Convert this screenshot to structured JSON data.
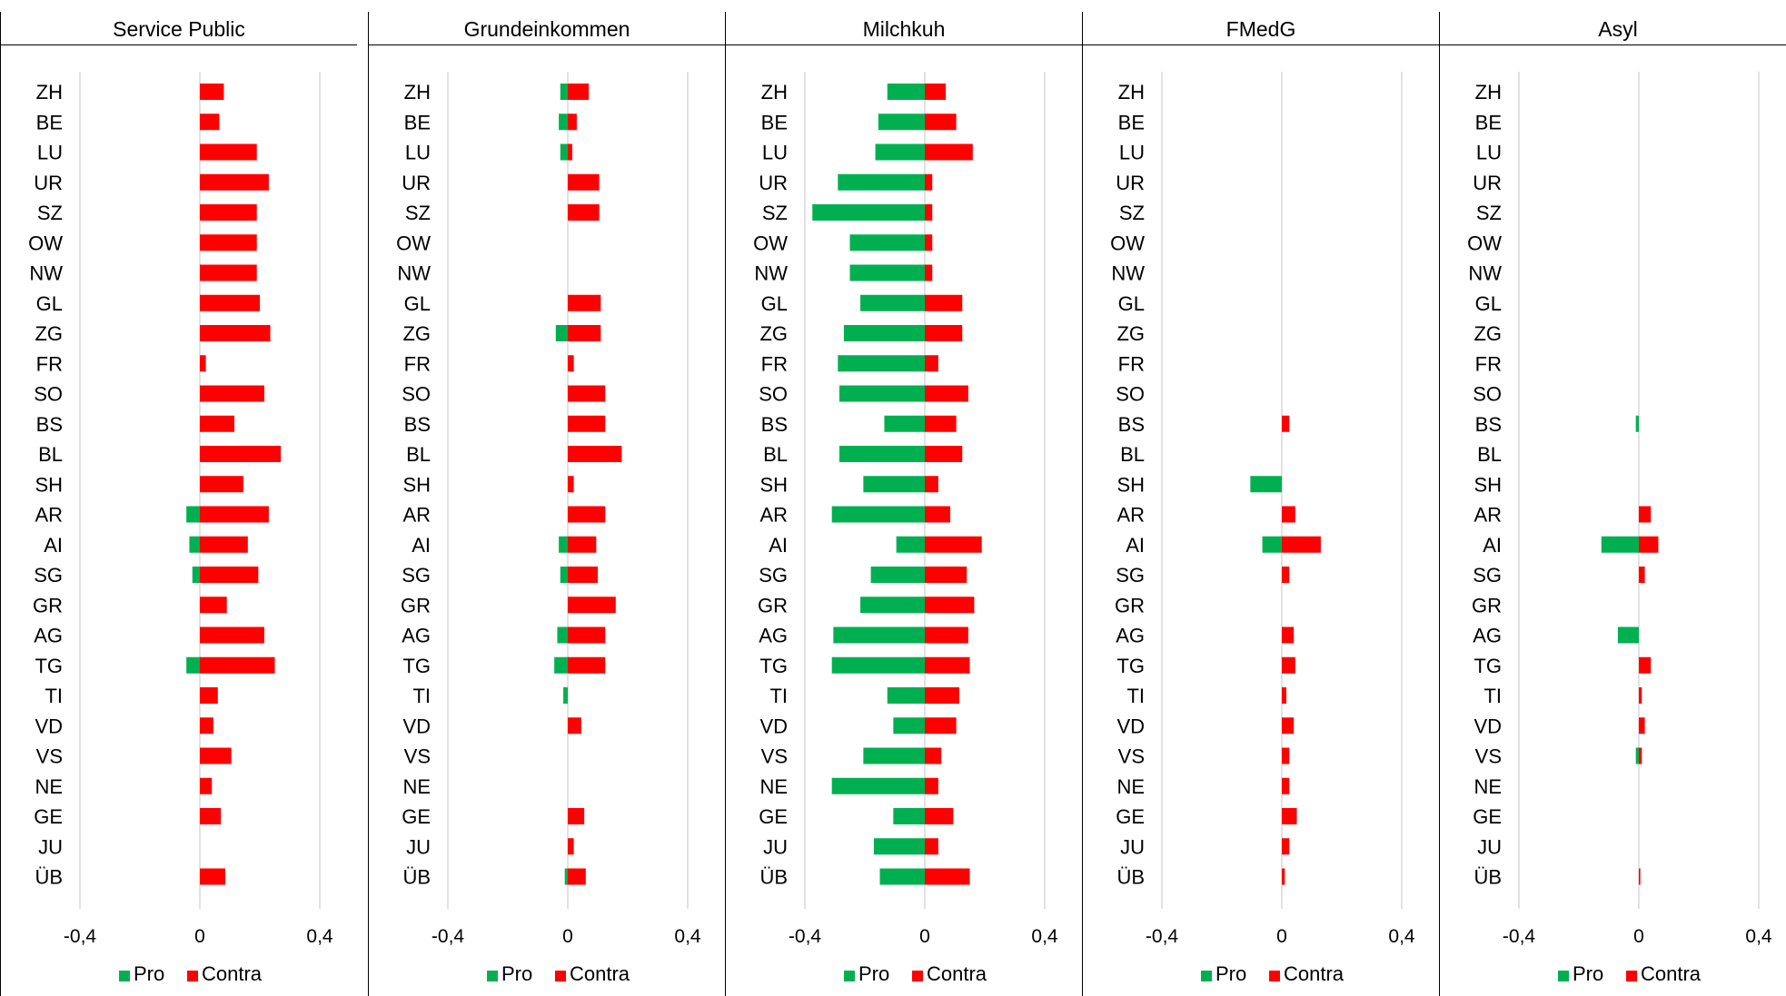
{
  "cantons": [
    "ZH",
    "BE",
    "LU",
    "UR",
    "SZ",
    "OW",
    "NW",
    "GL",
    "ZG",
    "FR",
    "SO",
    "BS",
    "BL",
    "SH",
    "AR",
    "AI",
    "SG",
    "GR",
    "AG",
    "TG",
    "TI",
    "VD",
    "VS",
    "NE",
    "GE",
    "JU",
    "ÜB"
  ],
  "colors": {
    "pro": "#00b050",
    "contra": "#ff0000",
    "grid": "#d9d9d9"
  },
  "chart_data": [
    {
      "type": "bar",
      "title": "Service Public",
      "xlim": [
        -0.4,
        0.4
      ],
      "x_ticks": [
        "-0,4",
        "0",
        "0,4"
      ],
      "legend": [
        "Pro",
        "Contra"
      ],
      "series": [
        {
          "name": "Pro",
          "values": [
            0,
            0,
            0,
            0,
            0,
            0,
            0,
            0,
            0,
            0,
            0,
            0,
            0,
            0,
            -0.045,
            -0.035,
            -0.025,
            0,
            0,
            -0.045,
            0,
            0,
            0,
            0,
            0,
            0,
            0
          ]
        },
        {
          "name": "Contra",
          "values": [
            0.08,
            0.065,
            0.19,
            0.23,
            0.19,
            0.19,
            0.19,
            0.2,
            0.235,
            0.02,
            0.215,
            0.115,
            0.27,
            0.145,
            0.23,
            0.16,
            0.195,
            0.09,
            0.215,
            0.25,
            0.06,
            0.045,
            0.105,
            0.04,
            0.07,
            0,
            0.085
          ]
        }
      ]
    },
    {
      "type": "bar",
      "title": "Grundeinkommen",
      "xlim": [
        -0.4,
        0.4
      ],
      "x_ticks": [
        "-0,4",
        "0",
        "0,4"
      ],
      "legend": [
        "Pro",
        "Contra"
      ],
      "series": [
        {
          "name": "Pro",
          "values": [
            -0.025,
            -0.03,
            -0.025,
            0,
            0,
            0,
            0,
            0,
            -0.04,
            0,
            0,
            0,
            0,
            0,
            0,
            -0.03,
            -0.025,
            0,
            -0.035,
            -0.045,
            -0.015,
            0,
            0,
            0,
            0,
            0,
            -0.01
          ]
        },
        {
          "name": "Contra",
          "values": [
            0.07,
            0.03,
            0.015,
            0.105,
            0.105,
            0,
            0,
            0.11,
            0.11,
            0.02,
            0.125,
            0.125,
            0.18,
            0.02,
            0.125,
            0.095,
            0.1,
            0.16,
            0.125,
            0.125,
            0,
            0.045,
            0,
            0,
            0.055,
            0.02,
            0.06
          ]
        }
      ]
    },
    {
      "type": "bar",
      "title": "Milchkuh",
      "xlim": [
        -0.4,
        0.4
      ],
      "x_ticks": [
        "-0,4",
        "0",
        "0,4"
      ],
      "legend": [
        "Pro",
        "Contra"
      ],
      "series": [
        {
          "name": "Pro",
          "values": [
            -0.125,
            -0.155,
            -0.165,
            -0.29,
            -0.375,
            -0.25,
            -0.25,
            -0.215,
            -0.27,
            -0.29,
            -0.285,
            -0.135,
            -0.285,
            -0.205,
            -0.31,
            -0.095,
            -0.18,
            -0.215,
            -0.305,
            -0.31,
            -0.125,
            -0.105,
            -0.205,
            -0.31,
            -0.105,
            -0.17,
            -0.15
          ]
        },
        {
          "name": "Contra",
          "values": [
            0.07,
            0.105,
            0.16,
            0.025,
            0.025,
            0.025,
            0.025,
            0.125,
            0.125,
            0.045,
            0.145,
            0.105,
            0.125,
            0.045,
            0.085,
            0.19,
            0.14,
            0.165,
            0.145,
            0.15,
            0.115,
            0.105,
            0.055,
            0.045,
            0.095,
            0.045,
            0.15
          ]
        }
      ]
    },
    {
      "type": "bar",
      "title": "FMedG",
      "xlim": [
        -0.4,
        0.4
      ],
      "x_ticks": [
        "-0,4",
        "0",
        "0,4"
      ],
      "legend": [
        "Pro",
        "Contra"
      ],
      "series": [
        {
          "name": "Pro",
          "values": [
            0,
            0,
            0,
            0,
            0,
            0,
            0,
            0,
            0,
            0,
            0,
            0,
            0,
            -0.105,
            0,
            -0.065,
            0,
            0,
            0,
            0,
            0,
            0,
            0,
            0,
            0,
            0,
            0
          ]
        },
        {
          "name": "Contra",
          "values": [
            0,
            0,
            0,
            0,
            0,
            0,
            0,
            0,
            0,
            0,
            0,
            0.025,
            0,
            0,
            0.045,
            0.13,
            0.025,
            0,
            0.04,
            0.045,
            0.015,
            0.04,
            0.025,
            0.025,
            0.05,
            0.025,
            0.01
          ]
        }
      ]
    },
    {
      "type": "bar",
      "title": "Asyl",
      "xlim": [
        -0.4,
        0.4
      ],
      "x_ticks": [
        "-0,4",
        "0",
        "0,4"
      ],
      "legend": [
        "Pro",
        "Contra"
      ],
      "series": [
        {
          "name": "Pro",
          "values": [
            0,
            0,
            0,
            0,
            0,
            0,
            0,
            0,
            0,
            0,
            0,
            -0.01,
            0,
            0,
            0,
            -0.125,
            0,
            0,
            -0.07,
            0,
            0,
            0,
            -0.01,
            0,
            0,
            0,
            0
          ]
        },
        {
          "name": "Contra",
          "values": [
            0,
            0,
            0,
            0,
            0,
            0,
            0,
            0,
            0,
            0,
            0,
            0,
            0,
            0,
            0.04,
            0.065,
            0.02,
            0,
            0,
            0.04,
            0.01,
            0.02,
            0.01,
            0,
            0,
            0,
            0.005
          ]
        }
      ]
    }
  ]
}
